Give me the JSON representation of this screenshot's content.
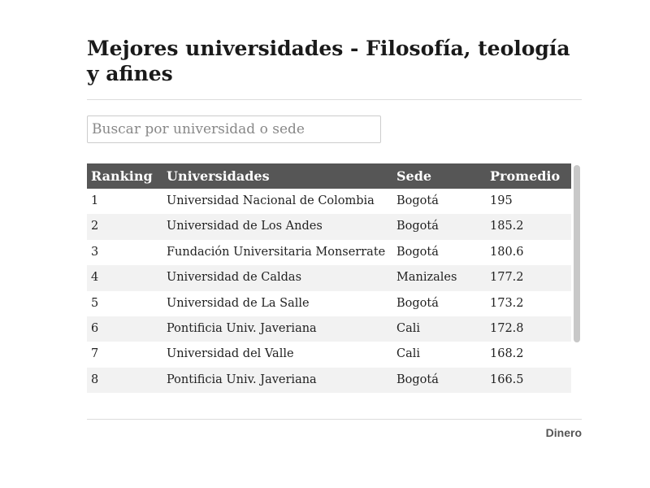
{
  "header": {
    "title": "Mejores universidades - Filosofía, teología y afines"
  },
  "search": {
    "placeholder": "Buscar por universidad o sede"
  },
  "table": {
    "columns": [
      "Ranking",
      "Universidades",
      "Sede",
      "Promedio"
    ],
    "rows": [
      [
        1,
        "Universidad Nacional de Colombia",
        "Bogotá",
        195
      ],
      [
        2,
        "Universidad de Los Andes",
        "Bogotá",
        185.2
      ],
      [
        3,
        "Fundación Universitaria Monserrate",
        "Bogotá",
        180.6
      ],
      [
        4,
        "Universidad de Caldas",
        "Manizales",
        177.2
      ],
      [
        5,
        "Universidad de La Salle",
        "Bogotá",
        173.2
      ],
      [
        6,
        "Pontificia Univ. Javeriana",
        "Cali",
        172.8
      ],
      [
        7,
        "Universidad del Valle",
        "Cali",
        168.2
      ],
      [
        8,
        "Pontificia Univ. Javeriana",
        "Bogotá",
        166.5
      ]
    ]
  },
  "footer": {
    "brand": "Dinero"
  }
}
